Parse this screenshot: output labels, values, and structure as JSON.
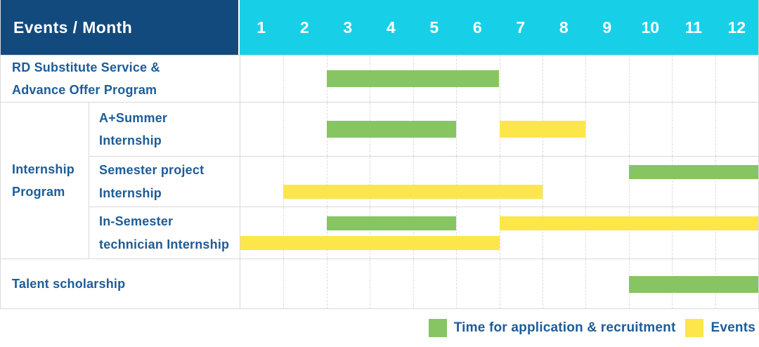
{
  "chart_data": {
    "type": "gantt",
    "header_label": "Events / Month",
    "months": [
      "1",
      "2",
      "3",
      "4",
      "5",
      "6",
      "7",
      "8",
      "9",
      "10",
      "11",
      "12"
    ],
    "xlabel": "Month",
    "x_range": [
      1,
      12
    ],
    "grid": "vertical-dashed",
    "group": {
      "label": "Internship\nProgram"
    },
    "rows": [
      {
        "label": "RD Substitute Service &\nAdvance Offer Program",
        "in_group": false,
        "lines": [
          [
            {
              "type": "recruitment",
              "start_month": 3,
              "end_month": 6
            }
          ]
        ]
      },
      {
        "label": "A+Summer\nInternship",
        "in_group": true,
        "lines": [
          [
            {
              "type": "recruitment",
              "start_month": 3,
              "end_month": 5
            },
            {
              "type": "events",
              "start_month": 7,
              "end_month": 8
            }
          ]
        ]
      },
      {
        "label": "Semester project\nInternship",
        "in_group": true,
        "lines": [
          [
            {
              "type": "recruitment",
              "start_month": 10,
              "end_month": 12
            }
          ],
          [
            {
              "type": "events",
              "start_month": 2,
              "end_month": 7
            }
          ]
        ]
      },
      {
        "label": "In-Semester\ntechnician Internship",
        "in_group": true,
        "lines": [
          [
            {
              "type": "recruitment",
              "start_month": 3,
              "end_month": 5
            },
            {
              "type": "events",
              "start_month": 7,
              "end_month": 12
            }
          ],
          [
            {
              "type": "events",
              "start_month": 1,
              "end_month": 6
            }
          ]
        ]
      },
      {
        "label": "Talent scholarship",
        "in_group": false,
        "lines": [
          [
            {
              "type": "recruitment",
              "start_month": 10,
              "end_month": 12
            }
          ]
        ]
      }
    ],
    "legend": [
      {
        "type": "recruitment",
        "label": "Time for application & recruitment"
      },
      {
        "type": "events",
        "label": "Events"
      }
    ],
    "legend_position": "bottom-right",
    "colors": {
      "recruitment": "#87c563",
      "events": "#fde64a",
      "header_blue": "#134a7d",
      "header_cyan": "#17d0e8",
      "text_blue": "#1d5c99",
      "grid_line": "#d9d9d9"
    }
  }
}
